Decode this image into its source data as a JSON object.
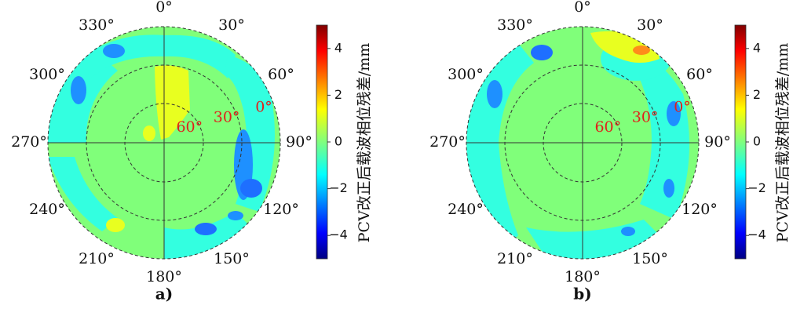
{
  "chart_data": [
    {
      "type": "heatmap",
      "subtype": "polar-skyplot",
      "panel_label": "a)",
      "azimuth_labels": [
        "0°",
        "30°",
        "60°",
        "90°",
        "120°",
        "150°",
        "180°",
        "210°",
        "240°",
        "270°",
        "300°",
        "330°"
      ],
      "elevation_labels": [
        "0°",
        "30°",
        "60°"
      ],
      "colorbar": {
        "label": "PCV改正后载波相位残差/mm",
        "ticks": [
          "4",
          "2",
          "0",
          "−2",
          "−4"
        ],
        "range": [
          -5,
          5
        ],
        "colormap": "jet"
      },
      "grid": true,
      "regions": [
        {
          "az_range": [
            -15,
            15
          ],
          "el_range": [
            15,
            62
          ],
          "value": 1.8
        },
        {
          "az_range": [
            -25,
            -5
          ],
          "el_range": [
            40,
            70
          ],
          "value": 0.8
        },
        {
          "az_range": [
            330,
            350
          ],
          "el_range": [
            0,
            12
          ],
          "value": -2.5
        },
        {
          "az_range": [
            290,
            320
          ],
          "el_range": [
            15,
            35
          ],
          "value": -2.8
        },
        {
          "az_range": [
            70,
            110
          ],
          "el_range": [
            15,
            40
          ],
          "value": -2.5
        },
        {
          "az_range": [
            120,
            150
          ],
          "el_range": [
            0,
            25
          ],
          "value": -3.2
        },
        {
          "az_range": [
            215,
            225
          ],
          "el_range": [
            10,
            22
          ],
          "value": 1.5
        },
        {
          "az_range": [
            150,
            180
          ],
          "el_range": [
            0,
            20
          ],
          "value": -1.5
        }
      ]
    },
    {
      "type": "heatmap",
      "subtype": "polar-skyplot",
      "panel_label": "b)",
      "azimuth_labels": [
        "0°",
        "30°",
        "60°",
        "90°",
        "120°",
        "150°",
        "180°",
        "210°",
        "240°",
        "270°",
        "300°",
        "330°"
      ],
      "elevation_labels": [
        "0°",
        "30°",
        "60°"
      ],
      "colorbar": {
        "label": "PCV改正后载波相位残差/mm",
        "ticks": [
          "4",
          "2",
          "0",
          "−2",
          "−4"
        ],
        "range": [
          -5,
          5
        ],
        "colormap": "jet"
      },
      "grid": true,
      "regions": [
        {
          "az_range": [
            10,
            45
          ],
          "el_range": [
            0,
            15
          ],
          "value": 2.2
        },
        {
          "az_range": [
            28,
            38
          ],
          "el_range": [
            2,
            8
          ],
          "value": 3.5
        },
        {
          "az_range": [
            330,
            350
          ],
          "el_range": [
            0,
            12
          ],
          "value": -3.0
        },
        {
          "az_range": [
            285,
            320
          ],
          "el_range": [
            10,
            30
          ],
          "value": -2.8
        },
        {
          "az_range": [
            60,
            110
          ],
          "el_range": [
            5,
            40
          ],
          "value": -1.8
        },
        {
          "az_range": [
            120,
            140
          ],
          "el_range": [
            0,
            20
          ],
          "value": -2.5
        },
        {
          "az_range": [
            150,
            210
          ],
          "el_range": [
            0,
            20
          ],
          "value": -1.2
        }
      ]
    }
  ]
}
